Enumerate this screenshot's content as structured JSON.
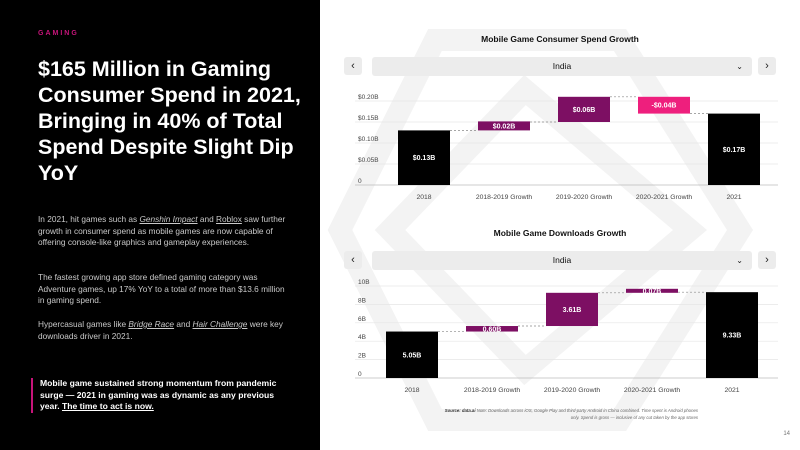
{
  "left": {
    "eyebrow": "GAMING",
    "headline": "$165 Million in Gaming Consumer Spend in 2021, Bringing in 40% of Total Spend Despite Slight Dip YoY",
    "p1_a": "In 2021, hit games such as ",
    "p1_link1": "Genshin Impact",
    "p1_b": " and ",
    "p1_link2": "Roblox",
    "p1_c": " saw further growth in consumer spend as mobile games are now capable of offering console-like graphics and gameplay experiences.",
    "p2": "The fastest growing app store defined gaming category was Adventure games, up 17% YoY to a total of more than $13.6 million in gaming spend.",
    "p3_a": "Hypercasual games like ",
    "p3_link1": "Bridge Race",
    "p3_b": " and ",
    "p3_link2": "Hair Challenge",
    "p3_c": " were key downloads driver in 2021.",
    "callout_text": "Mobile game sustained strong momentum from pandemic surge — 2021 in gaming was as dynamic as any previous year. ",
    "callout_cta": "The time to act is now."
  },
  "chart1": {
    "title": "Mobile Game Consumer Spend Growth",
    "selected": "India"
  },
  "chart2": {
    "title": "Mobile Game Downloads Growth",
    "selected": "India"
  },
  "nav": {
    "prev": "‹",
    "next": "›",
    "chevron": "⌄"
  },
  "footer": {
    "source_label": "Source: data.ai",
    "source_text": " Note: Downloads across iOS, Google Play and third-party Android in China combined. Time spent is Android phones only. Spend is gross — inclusive of any cut taken by the app stores",
    "page": "14"
  },
  "colors": {
    "accent": "#c7147a",
    "pink_dec": "#ee1f7d",
    "purple": "#7d0f63",
    "dark": "#000000"
  },
  "chart_data": [
    {
      "type": "waterfall",
      "title": "Mobile Game Consumer Spend Growth",
      "categories": [
        "2018",
        "2018-2019 Growth",
        "2019-2020 Growth",
        "2020-2021 Growth",
        "2021"
      ],
      "values": [
        0.13,
        0.02,
        0.06,
        -0.04,
        0.17
      ],
      "labels": [
        "$0.13B",
        "$0.02B",
        "$0.06B",
        "-$0.04B",
        "$0.17B"
      ],
      "kinds": [
        "total",
        "inc",
        "inc",
        "dec",
        "total"
      ],
      "yticks": [
        0,
        0.05,
        0.1,
        0.15,
        0.2
      ],
      "ytick_labels": [
        "0",
        "$0.05B",
        "$0.10B",
        "$0.15B",
        "$0.20B"
      ],
      "ylim": [
        0,
        0.2
      ]
    },
    {
      "type": "waterfall",
      "title": "Mobile Game Downloads Growth",
      "categories": [
        "2018",
        "2018-2019 Growth",
        "2019-2020 Growth",
        "2020-2021 Growth",
        "2021"
      ],
      "values": [
        5.05,
        0.6,
        3.61,
        0.07,
        9.33
      ],
      "labels": [
        "5.05B",
        "0.60B",
        "3.61B",
        "0.07B",
        "9.33B"
      ],
      "kinds": [
        "total",
        "inc",
        "inc",
        "inc",
        "total"
      ],
      "yticks": [
        0,
        2,
        4,
        6,
        8,
        10
      ],
      "ytick_labels": [
        "0",
        "2B",
        "4B",
        "6B",
        "8B",
        "10B"
      ],
      "ylim": [
        0,
        10
      ]
    }
  ]
}
